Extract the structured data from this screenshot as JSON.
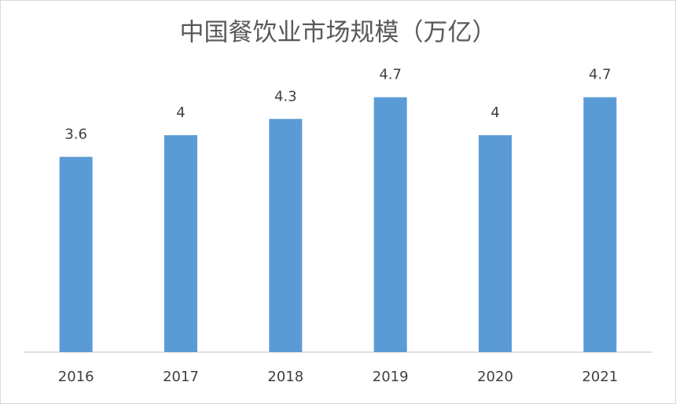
{
  "chart_data": {
    "type": "bar",
    "title": "中国餐饮业市场规模（万亿）",
    "categories": [
      "2016",
      "2017",
      "2018",
      "2019",
      "2020",
      "2021"
    ],
    "values": [
      3.6,
      4,
      4.3,
      4.7,
      4,
      4.7
    ],
    "color": "#5b9bd5",
    "ylim": [
      0,
      5.5
    ]
  }
}
